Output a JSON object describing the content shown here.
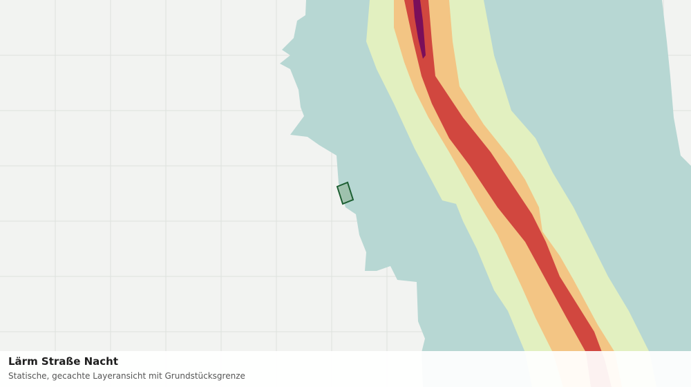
{
  "caption": {
    "title": "Lärm Straße Nacht",
    "subtitle": "Statische, gecachte Layeransicht mit Grundstücksgrenze"
  }
}
